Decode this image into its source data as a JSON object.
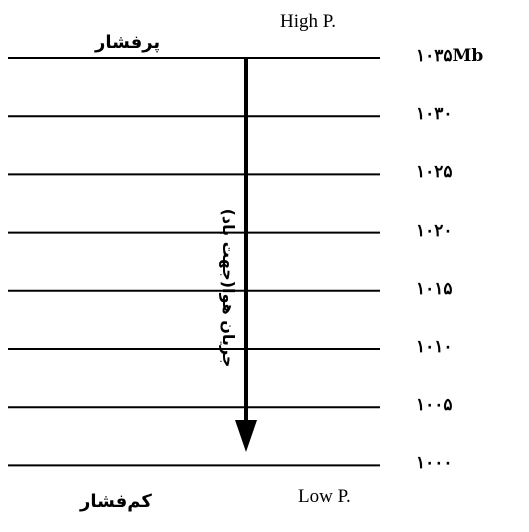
{
  "labels": {
    "high_fa": "پرفشار",
    "high_en": "High P.",
    "low_fa": "کم‌فشار",
    "low_en": "Low P.",
    "flow": "جریان هوا(جهت باد)"
  },
  "pressure_levels": [
    "۱۰۳۵Mb",
    "۱۰۳۰",
    "۱۰۲۵",
    "۱۰۲۰",
    "۱۰۱۵",
    "۱۰۱۰",
    "۱۰۰۵",
    "۱۰۰۰"
  ],
  "colors": {
    "ink": "#000000",
    "background": "#ffffff"
  }
}
